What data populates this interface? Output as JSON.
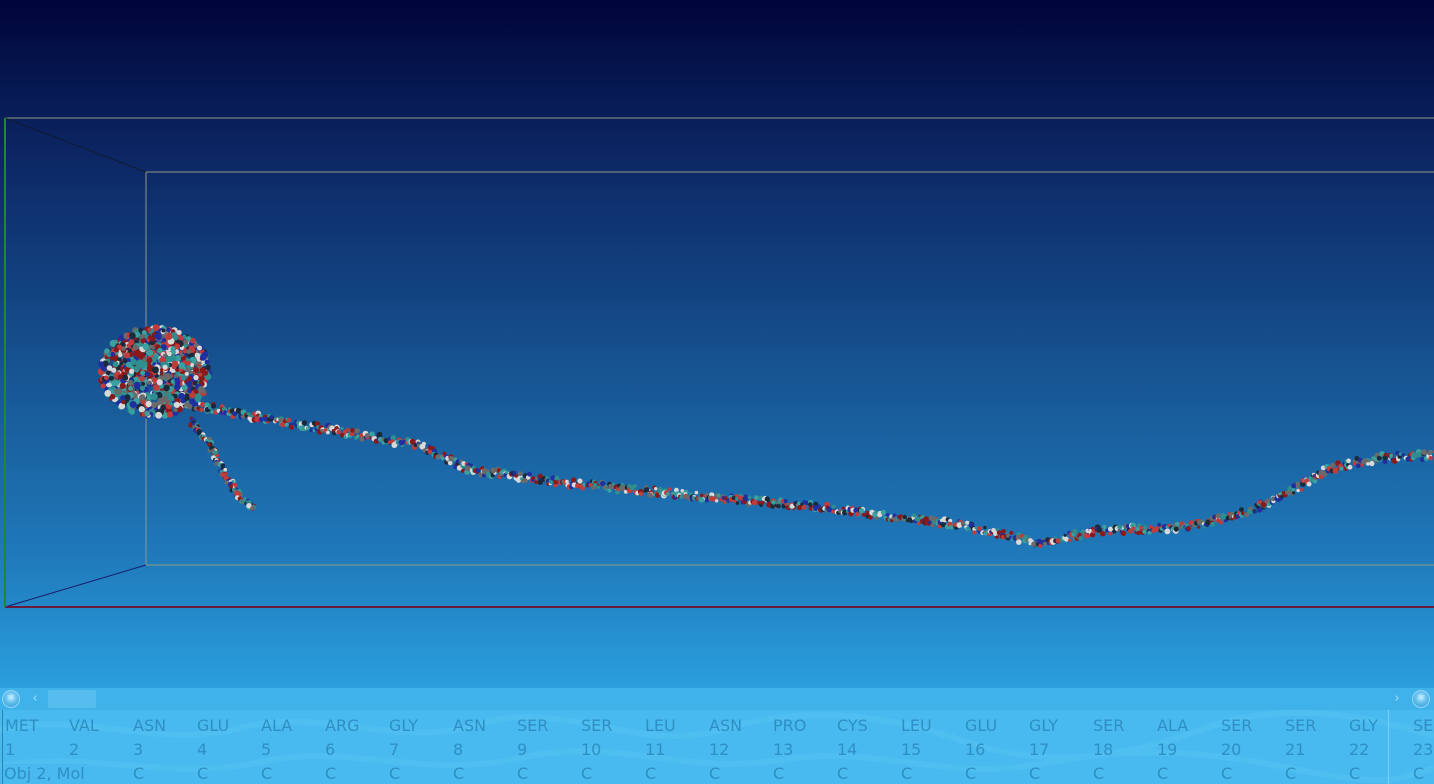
{
  "viewport": {
    "background_top": "#00053a",
    "background_bottom": "#3ab5ef",
    "box_color": "#8f9a80",
    "atom_colors": [
      "#1b2a3a",
      "#8a1a1a",
      "#2e8f8f",
      "#c23b3b",
      "#d8d8d8",
      "#1f2fa0",
      "#6a6a6a",
      "#3aa0a0"
    ]
  },
  "sequence_toolbar": {
    "left_button_icon": "molecule-icon",
    "right_button_icon": "molecule-icon",
    "left_arrow": "‹",
    "right_arrow": "›"
  },
  "sequence": {
    "object_label": "Obj 2, Mol",
    "residues": [
      {
        "name": "MET",
        "num": "1",
        "chain": ""
      },
      {
        "name": "VAL",
        "num": "2",
        "chain": ""
      },
      {
        "name": "ASN",
        "num": "3",
        "chain": "C"
      },
      {
        "name": "GLU",
        "num": "4",
        "chain": "C"
      },
      {
        "name": "ALA",
        "num": "5",
        "chain": "C"
      },
      {
        "name": "ARG",
        "num": "6",
        "chain": "C"
      },
      {
        "name": "GLY",
        "num": "7",
        "chain": "C"
      },
      {
        "name": "ASN",
        "num": "8",
        "chain": "C"
      },
      {
        "name": "SER",
        "num": "9",
        "chain": "C"
      },
      {
        "name": "SER",
        "num": "10",
        "chain": "C"
      },
      {
        "name": "LEU",
        "num": "11",
        "chain": "C"
      },
      {
        "name": "ASN",
        "num": "12",
        "chain": "C"
      },
      {
        "name": "PRO",
        "num": "13",
        "chain": "C"
      },
      {
        "name": "CYS",
        "num": "14",
        "chain": "C"
      },
      {
        "name": "LEU",
        "num": "15",
        "chain": "C"
      },
      {
        "name": "GLU",
        "num": "16",
        "chain": "C"
      },
      {
        "name": "GLY",
        "num": "17",
        "chain": "C"
      },
      {
        "name": "SER",
        "num": "18",
        "chain": "C"
      },
      {
        "name": "ALA",
        "num": "19",
        "chain": "C"
      },
      {
        "name": "SER",
        "num": "20",
        "chain": "C"
      },
      {
        "name": "SER",
        "num": "21",
        "chain": "C"
      },
      {
        "name": "GLY",
        "num": "22",
        "chain": "C"
      },
      {
        "name": "SEI",
        "num": "23",
        "chain": "C"
      }
    ]
  }
}
